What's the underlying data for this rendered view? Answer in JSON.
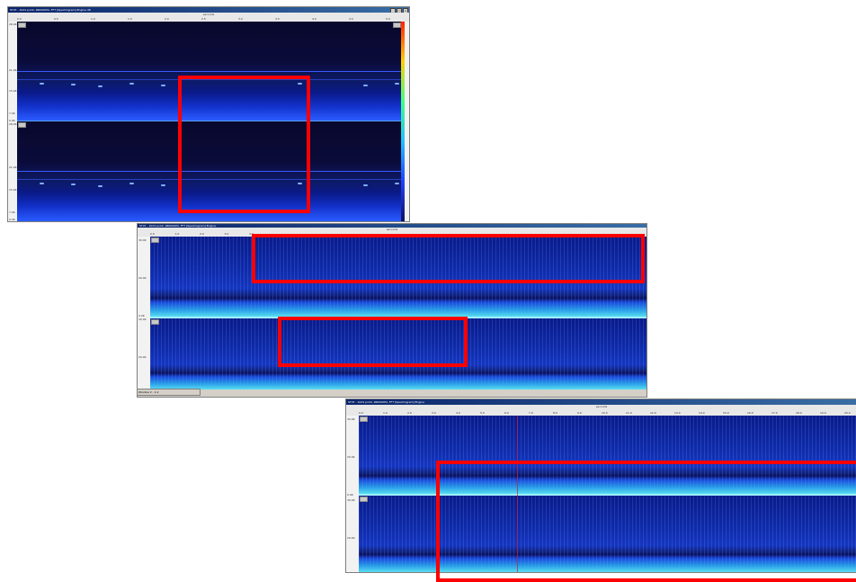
{
  "window1": {
    "title": "ST4T - 1024 point, 960000Hz, FFT [Spectrogram] Engine 48",
    "axis_label": "seconds",
    "ticks": [
      "0.0",
      "0.5",
      "1.0",
      "1.5",
      "2.0",
      "2.5",
      "3.0",
      "3.5",
      "4.0",
      "4.5",
      "5.0"
    ],
    "left_labels": [
      "28.0K",
      "21.0K",
      "15.0K",
      "7.0K",
      "0.0K",
      "28.0K",
      "21.0K",
      "15.0K",
      "7.0K",
      "0.0K"
    ]
  },
  "window2": {
    "title": "ST4T - 1024 point, 960000Hz, FFT [Spectrogram] Engine",
    "axis_label": "seconds",
    "ticks": [
      "0.0",
      "1.0",
      "2.0",
      "3.0",
      "4.0"
    ],
    "left_labels": [
      "30.0K",
      "20.0K",
      "0.0K",
      "30.0K",
      "20.0K"
    ],
    "taskbar_item": "Window 2 - 1.2"
  },
  "window3": {
    "title": "ST4T - 1024 point, 960000Hz, FFT [Spectrogram] Engine",
    "axis_label": "seconds",
    "ticks": [
      "0.0",
      "1.0",
      "2.0",
      "3.0",
      "4.0",
      "5.0",
      "6.0",
      "7.0",
      "8.0",
      "9.0",
      "10.0",
      "11.0",
      "12.0",
      "13.0",
      "14.0",
      "15.0",
      "16.0",
      "17.0",
      "18.0",
      "19.0",
      "20.0"
    ],
    "left_labels": [
      "30.0K",
      "20.0K",
      "0.0K",
      "30.0K",
      "20.0K"
    ]
  },
  "colors": {
    "highlight": "#ff0000",
    "spectrogram_dark": "#08082c",
    "spectrogram_blue": "#1535c0"
  }
}
